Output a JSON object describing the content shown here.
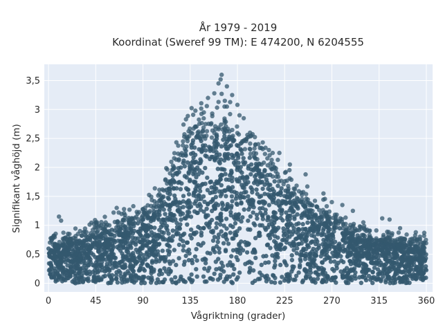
{
  "chart_data": {
    "type": "scatter",
    "title_line1": "År 1979 - 2019",
    "title_line2": "Koordinat (Sweref 99 TM): E 474200, N 6204555",
    "xlabel": "Vågriktning (grader)",
    "ylabel": "Signifikant våghöjd (m)",
    "xlim": [
      -4,
      366
    ],
    "ylim": [
      -0.15,
      3.78
    ],
    "x_ticks": [
      0,
      45,
      90,
      135,
      180,
      225,
      270,
      315,
      360
    ],
    "x_tick_labels": [
      "0",
      "45",
      "90",
      "135",
      "180",
      "225",
      "270",
      "315",
      "360"
    ],
    "y_ticks": [
      0,
      0.5,
      1,
      1.5,
      2,
      2.5,
      3,
      3.5
    ],
    "y_tick_labels": [
      "0",
      "0,5",
      "1",
      "1,5",
      "2",
      "2,5",
      "3",
      "3,5"
    ],
    "grid": true,
    "marker_color": "#34586e",
    "plot_bg": "#e5ecf6",
    "envelope_upper": [
      [
        0,
        0.62
      ],
      [
        15,
        0.68
      ],
      [
        30,
        0.74
      ],
      [
        45,
        0.82
      ],
      [
        60,
        0.92
      ],
      [
        75,
        1.0
      ],
      [
        90,
        1.1
      ],
      [
        100,
        1.25
      ],
      [
        110,
        1.55
      ],
      [
        120,
        1.95
      ],
      [
        130,
        2.3
      ],
      [
        135,
        2.5
      ],
      [
        140,
        2.6
      ],
      [
        150,
        2.45
      ],
      [
        160,
        2.5
      ],
      [
        165,
        2.65
      ],
      [
        170,
        2.6
      ],
      [
        180,
        2.4
      ],
      [
        190,
        2.25
      ],
      [
        200,
        2.05
      ],
      [
        210,
        1.9
      ],
      [
        225,
        1.65
      ],
      [
        240,
        1.4
      ],
      [
        255,
        1.2
      ],
      [
        270,
        1.05
      ],
      [
        285,
        0.9
      ],
      [
        300,
        0.8
      ],
      [
        315,
        0.74
      ],
      [
        330,
        0.7
      ],
      [
        345,
        0.68
      ],
      [
        360,
        0.65
      ]
    ],
    "outliers": [
      [
        165,
        3.6
      ],
      [
        164,
        3.52
      ],
      [
        162,
        3.45
      ],
      [
        170,
        3.4
      ],
      [
        158,
        3.28
      ],
      [
        165,
        3.27
      ],
      [
        175,
        3.25
      ],
      [
        152,
        3.2
      ],
      [
        168,
        3.15
      ],
      [
        162,
        3.13
      ],
      [
        170,
        3.05
      ],
      [
        180,
        3.08
      ],
      [
        140,
        2.98
      ],
      [
        148,
        2.95
      ],
      [
        156,
        2.93
      ],
      [
        173,
        2.92
      ],
      [
        182,
        2.9
      ],
      [
        186,
        2.85
      ],
      [
        192,
        2.6
      ],
      [
        200,
        2.4
      ],
      [
        210,
        2.3
      ],
      [
        220,
        2.25
      ],
      [
        230,
        2.05
      ],
      [
        245,
        1.88
      ],
      [
        262,
        1.55
      ],
      [
        270,
        1.4
      ],
      [
        280,
        1.35
      ],
      [
        290,
        1.25
      ],
      [
        300,
        1.05
      ],
      [
        318,
        1.12
      ],
      [
        325,
        1.1
      ],
      [
        335,
        0.95
      ],
      [
        350,
        0.88
      ],
      [
        358,
        0.87
      ],
      [
        62,
        1.22
      ],
      [
        72,
        1.28
      ],
      [
        65,
        1.3
      ],
      [
        85,
        1.2
      ],
      [
        90,
        1.28
      ],
      [
        110,
        1.4
      ],
      [
        100,
        1.3
      ],
      [
        10,
        1.15
      ],
      [
        12,
        1.08
      ],
      [
        5,
        0.82
      ],
      [
        20,
        0.85
      ],
      [
        30,
        0.9
      ],
      [
        45,
        1.05
      ],
      [
        50,
        1.0
      ]
    ]
  }
}
